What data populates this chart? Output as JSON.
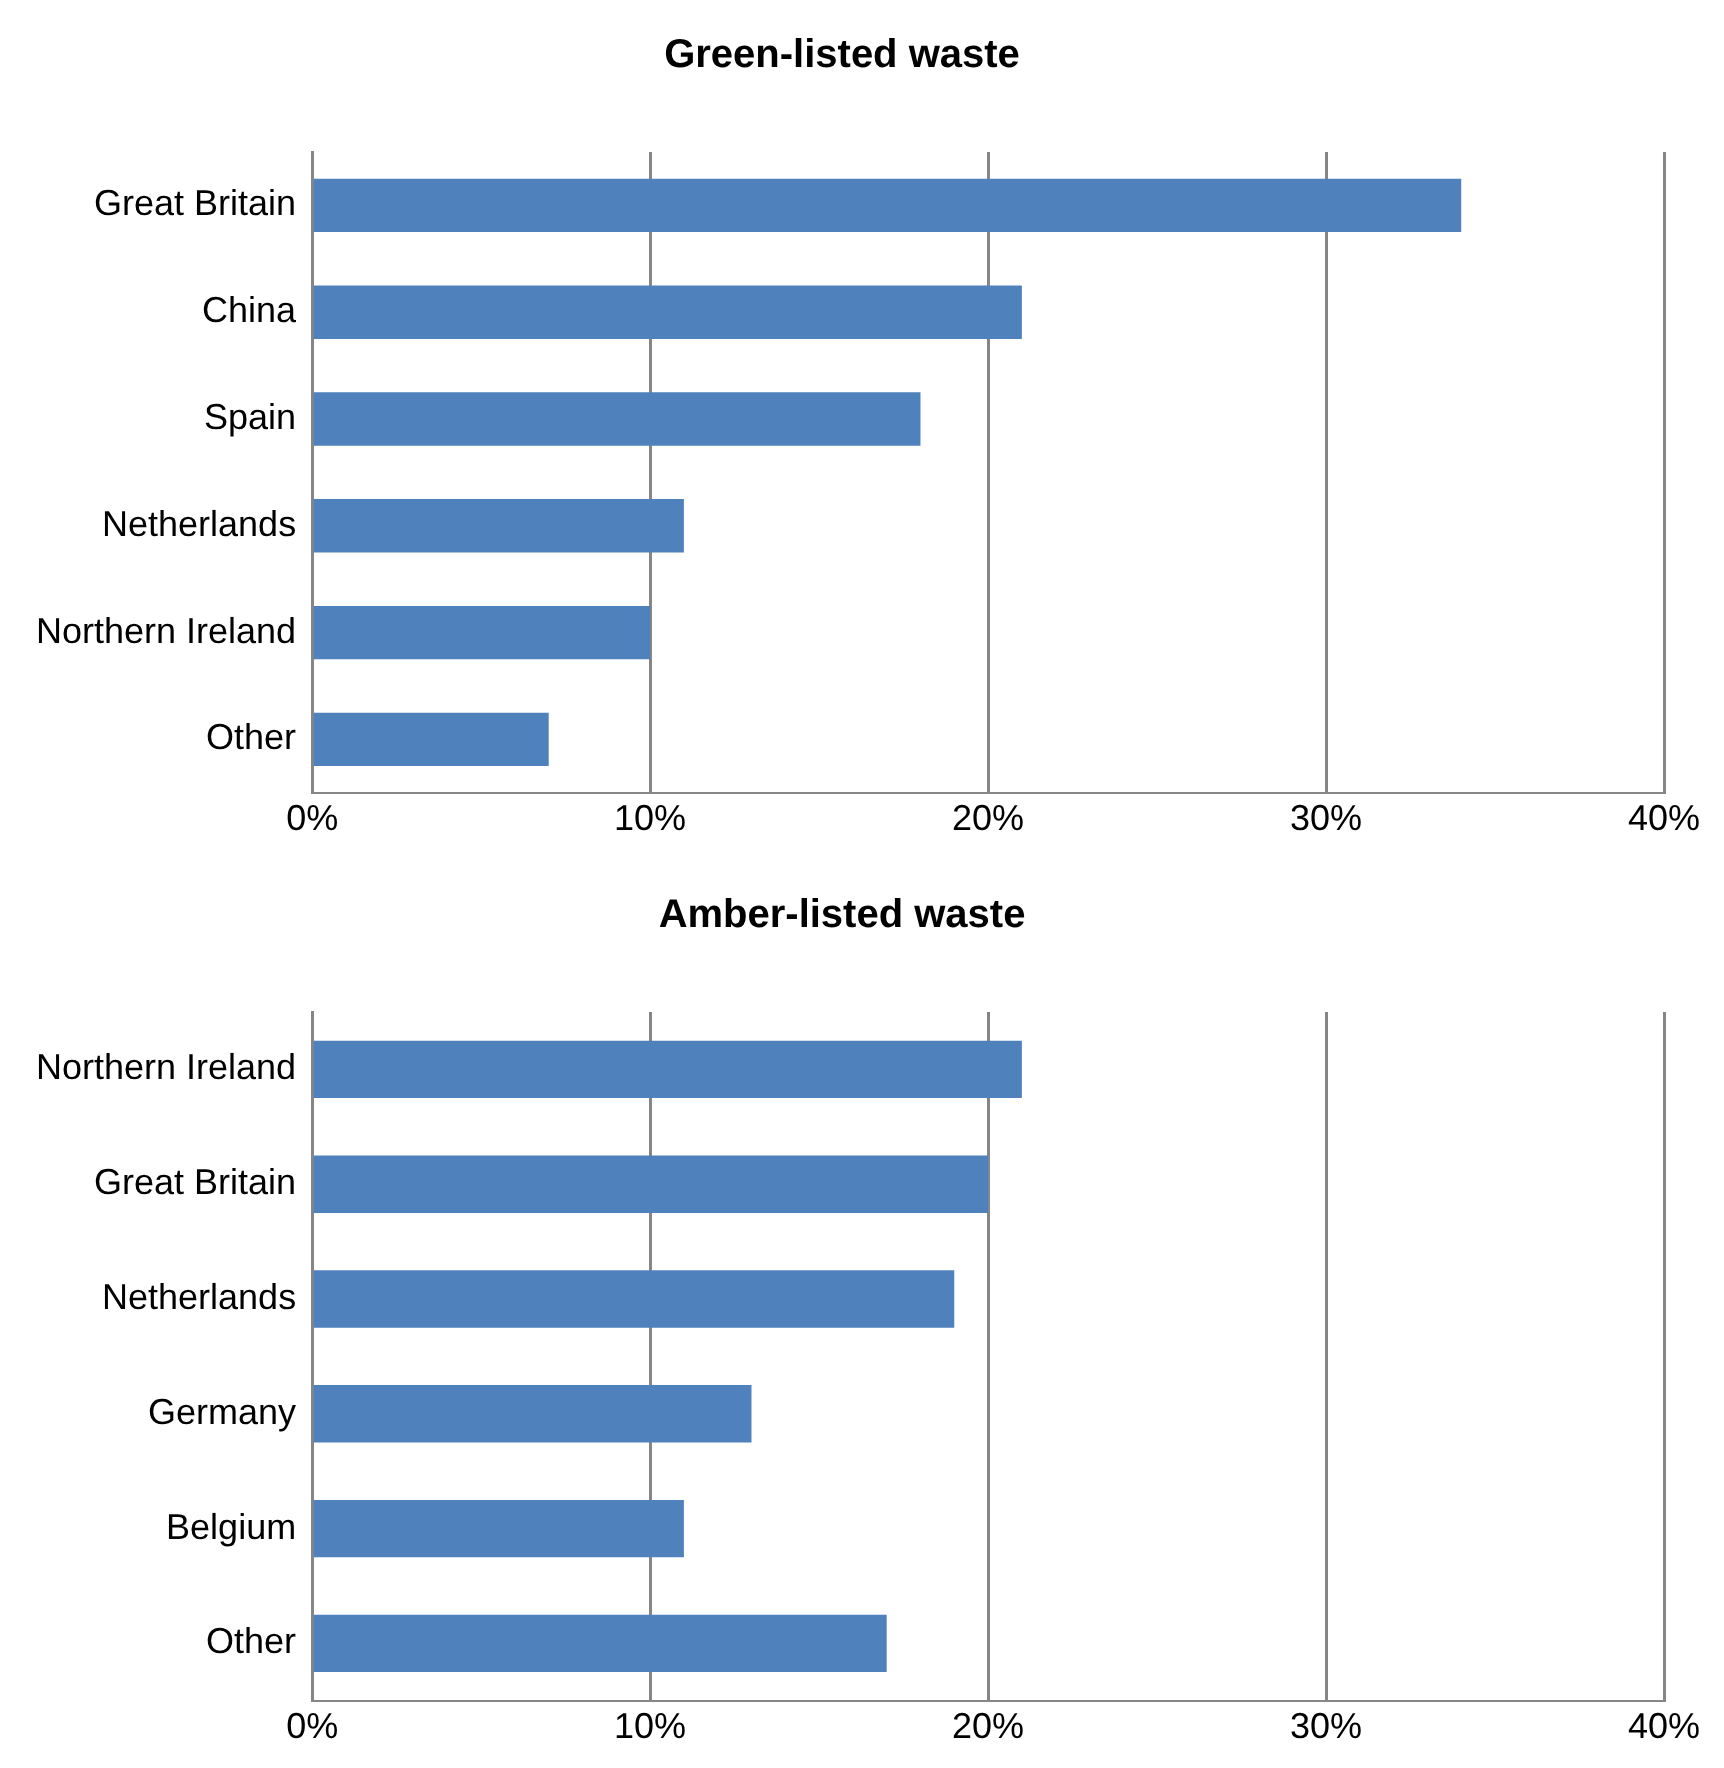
{
  "chart_data": [
    {
      "type": "bar",
      "orientation": "horizontal",
      "title": "Green-listed waste",
      "categories": [
        "Great Britain",
        "China",
        "Spain",
        "Netherlands",
        "Northern Ireland",
        "Other"
      ],
      "values": [
        34,
        21,
        18,
        11,
        10,
        7
      ],
      "color": "#4f81bd",
      "xlim": [
        0,
        40
      ],
      "xticks": [
        {
          "value": 0,
          "label": "0%"
        },
        {
          "value": 10,
          "label": "10%"
        },
        {
          "value": 20,
          "label": "20%"
        },
        {
          "value": 30,
          "label": "30%"
        },
        {
          "value": 40,
          "label": "40%"
        }
      ],
      "grid": "x",
      "legend": false
    },
    {
      "type": "bar",
      "orientation": "horizontal",
      "title": "Amber-listed waste",
      "categories": [
        "Northern Ireland",
        "Great Britain",
        "Netherlands",
        "Germany",
        "Belgium",
        "Other"
      ],
      "values": [
        21,
        20,
        19,
        13,
        11,
        17
      ],
      "color": "#4f81bd",
      "xlim": [
        0,
        40
      ],
      "xticks": [
        {
          "value": 0,
          "label": "0%"
        },
        {
          "value": 10,
          "label": "10%"
        },
        {
          "value": 20,
          "label": "20%"
        },
        {
          "value": 30,
          "label": "30%"
        },
        {
          "value": 40,
          "label": "40%"
        }
      ],
      "grid": "x",
      "legend": false
    }
  ]
}
